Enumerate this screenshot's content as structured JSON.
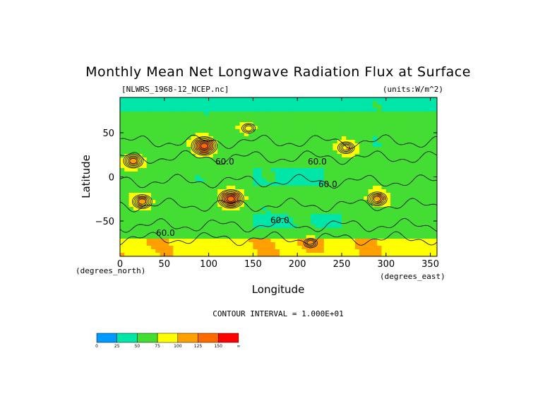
{
  "chart_data": {
    "type": "heatmap",
    "title": "Monthly Mean Net Longwave Radiation Flux at Surface",
    "subtitle_left": "[NLWRS_1968-12_NCEP.nc]",
    "subtitle_right": "(units:W/m^2)",
    "xlabel": "Longitude",
    "ylabel": "Latitude",
    "x_units": "(degrees_east)",
    "y_units": "(degrees_north)",
    "xlim": [
      0,
      357.5
    ],
    "ylim": [
      -90,
      90
    ],
    "x_ticks": [
      0,
      50,
      100,
      150,
      200,
      250,
      300,
      350
    ],
    "y_ticks": [
      -50,
      0,
      50
    ],
    "contour_interval_text": "CONTOUR INTERVAL = 1.000E+01",
    "contour_labels": [
      "60.0",
      "60.0",
      "60.0",
      "60.0",
      "60.0"
    ],
    "colorbar": {
      "levels": [
        "0",
        "25",
        "50",
        "75",
        "100",
        "125",
        "150",
        "∞"
      ],
      "colors": [
        "#0099ff",
        "#00e6a8",
        "#44dd33",
        "#ffff00",
        "#ffa000",
        "#ff6a00",
        "#ff0000"
      ]
    },
    "features": [
      {
        "lon": 125,
        "lat": -25,
        "value": 140
      },
      {
        "lon": 95,
        "lat": 35,
        "value": 125
      },
      {
        "lon": 15,
        "lat": 18,
        "value": 110
      },
      {
        "lon": 25,
        "lat": -28,
        "value": 110
      },
      {
        "lon": 255,
        "lat": 33,
        "value": 100
      },
      {
        "lon": 290,
        "lat": -25,
        "value": 110
      },
      {
        "lon": 145,
        "lat": 55,
        "value": 85
      },
      {
        "lon": 215,
        "lat": -75,
        "value": 90
      }
    ]
  }
}
